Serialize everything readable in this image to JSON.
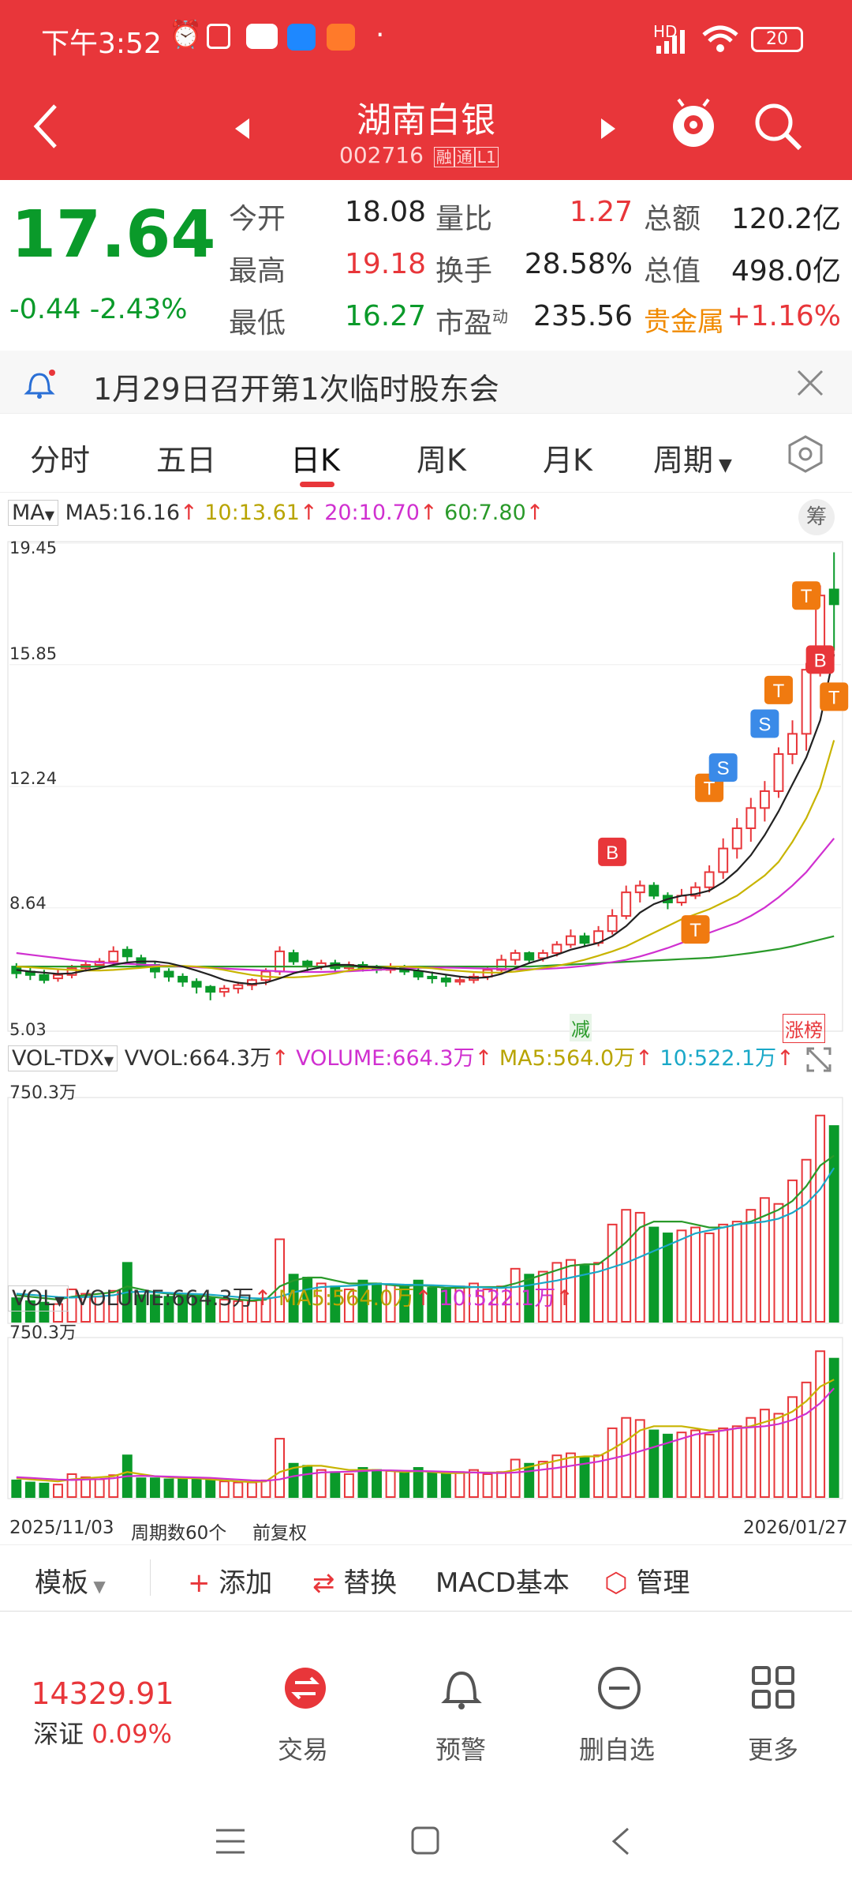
{
  "status_bar": {
    "time": "下午3:52",
    "network": "HD",
    "battery": "20"
  },
  "header": {
    "title": "湖南白银",
    "code": "002716",
    "tag1": "融",
    "tag2": "通",
    "tag3": "L1"
  },
  "quote": {
    "price": "17.64",
    "change": "-0.44",
    "change_pct": "-2.43%",
    "rows": [
      {
        "l1": "今开",
        "v1": "18.08",
        "l2": "量比",
        "v2": "1.27",
        "l3": "总额",
        "v3": "120.2亿"
      },
      {
        "l1": "最高",
        "v1": "19.18",
        "l2": "换手",
        "v2": "28.58%",
        "l3": "总值",
        "v3": "498.0亿"
      },
      {
        "l1": "最低",
        "v1": "16.27",
        "l2": "市盈",
        "l2sup": "动",
        "v2": "235.56",
        "l3": "贵金属",
        "v3": "+1.16%"
      }
    ]
  },
  "notice": {
    "text": "1月29日召开第1次临时股东会"
  },
  "tabs": [
    "分时",
    "五日",
    "日K",
    "周K",
    "月K",
    "周期"
  ],
  "active_tab": "日K",
  "ma_legend": {
    "label": "MA",
    "ma5": "MA5:16.16",
    "ma10": "10:13.61",
    "ma20": "20:10.70",
    "ma60": "60:7.80",
    "chip": "筹",
    "arrow": "↑"
  },
  "price_axis": [
    "19.45",
    "15.85",
    "12.24",
    "8.64",
    "5.03"
  ],
  "markers": {
    "jian": "减",
    "zhangbang": "涨榜",
    "B": "B",
    "S": "S",
    "T": "T"
  },
  "vol_tdx": {
    "label": "VOL-TDX",
    "vvol": "VVOL:664.3万",
    "volume": "VOLUME:664.3万",
    "ma5": "MA5:564.0万",
    "ma10": "10:522.1万",
    "max": "750.3万"
  },
  "vol": {
    "label": "VOL",
    "volume": "VOLUME:664.3万",
    "ma5": "MA5:564.0万",
    "ma10": "10:522.1万",
    "max": "750.3万"
  },
  "footer_axis": {
    "start": "2025/11/03",
    "count": "周期数60个",
    "adj": "前复权",
    "end": "2026/01/27"
  },
  "toolbar": {
    "template": "模板",
    "add": "添加",
    "replace": "替换",
    "macd": "MACD基本",
    "manage": "管理"
  },
  "bottom_nav": {
    "index_value": "14329.91",
    "index_name": "深证",
    "index_pct": "0.09%",
    "trade": "交易",
    "alert": "预警",
    "remove": "删自选",
    "more": "更多"
  },
  "colors": {
    "red": "#e8363a",
    "green": "#0a9a2a",
    "orange": "#f08a00",
    "ma5": "#222222",
    "ma10": "#c8b400",
    "ma20": "#d030d0",
    "ma60": "#2a9a2a"
  },
  "chart_data": {
    "type": "candlestick",
    "x_start": "2025/11/03",
    "x_end": "2026/01/27",
    "periods": 60,
    "ylim": [
      5.03,
      19.45
    ],
    "candles": [
      [
        6.9,
        6.7,
        7.0,
        6.55
      ],
      [
        6.75,
        6.65,
        6.9,
        6.5
      ],
      [
        6.65,
        6.5,
        6.8,
        6.4
      ],
      [
        6.55,
        6.65,
        6.8,
        6.45
      ],
      [
        6.65,
        6.85,
        6.95,
        6.55
      ],
      [
        6.85,
        6.95,
        7.05,
        6.75
      ],
      [
        6.95,
        7.05,
        7.15,
        6.85
      ],
      [
        7.05,
        7.35,
        7.5,
        6.95
      ],
      [
        7.4,
        7.2,
        7.5,
        7.05
      ],
      [
        7.15,
        6.95,
        7.25,
        6.85
      ],
      [
        6.95,
        6.75,
        7.05,
        6.55
      ],
      [
        6.75,
        6.6,
        6.85,
        6.45
      ],
      [
        6.6,
        6.45,
        6.7,
        6.3
      ],
      [
        6.45,
        6.3,
        6.55,
        6.1
      ],
      [
        6.3,
        6.15,
        6.35,
        5.9
      ],
      [
        6.15,
        6.25,
        6.35,
        6.0
      ],
      [
        6.25,
        6.35,
        6.45,
        6.1
      ],
      [
        6.35,
        6.5,
        6.55,
        6.2
      ],
      [
        6.5,
        6.75,
        6.85,
        6.35
      ],
      [
        6.75,
        7.35,
        7.5,
        6.65
      ],
      [
        7.3,
        7.05,
        7.4,
        6.95
      ],
      [
        7.05,
        6.9,
        7.1,
        6.75
      ],
      [
        6.9,
        7.0,
        7.1,
        6.8
      ],
      [
        7.0,
        6.85,
        7.1,
        6.75
      ],
      [
        6.85,
        6.95,
        7.05,
        6.75
      ],
      [
        6.95,
        6.85,
        7.05,
        6.75
      ],
      [
        6.85,
        6.8,
        6.95,
        6.7
      ],
      [
        6.8,
        6.9,
        7.0,
        6.7
      ],
      [
        6.9,
        6.75,
        6.95,
        6.65
      ],
      [
        6.75,
        6.6,
        6.85,
        6.5
      ],
      [
        6.6,
        6.55,
        6.75,
        6.4
      ],
      [
        6.55,
        6.45,
        6.65,
        6.3
      ],
      [
        6.45,
        6.5,
        6.6,
        6.35
      ],
      [
        6.5,
        6.6,
        6.7,
        6.4
      ],
      [
        6.6,
        6.8,
        6.9,
        6.5
      ],
      [
        6.8,
        7.1,
        7.25,
        6.7
      ],
      [
        7.1,
        7.3,
        7.4,
        6.95
      ],
      [
        7.3,
        7.1,
        7.35,
        7.0
      ],
      [
        7.15,
        7.3,
        7.4,
        7.05
      ],
      [
        7.3,
        7.55,
        7.65,
        7.2
      ],
      [
        7.55,
        7.8,
        8.0,
        7.45
      ],
      [
        7.8,
        7.6,
        7.9,
        7.5
      ],
      [
        7.6,
        7.95,
        8.1,
        7.5
      ],
      [
        7.95,
        8.4,
        8.6,
        7.85
      ],
      [
        8.4,
        9.1,
        9.3,
        8.3
      ],
      [
        9.1,
        9.3,
        9.45,
        8.8
      ],
      [
        9.3,
        9.0,
        9.4,
        8.9
      ],
      [
        9.0,
        8.8,
        9.1,
        8.6
      ],
      [
        8.8,
        9.0,
        9.2,
        8.7
      ],
      [
        9.0,
        9.25,
        9.4,
        8.9
      ],
      [
        9.25,
        9.7,
        9.9,
        9.1
      ],
      [
        9.7,
        10.4,
        10.7,
        9.5
      ],
      [
        10.4,
        11.0,
        11.3,
        10.1
      ],
      [
        11.0,
        11.6,
        11.9,
        10.6
      ],
      [
        11.6,
        12.1,
        12.4,
        11.2
      ],
      [
        12.1,
        13.2,
        13.4,
        11.9
      ],
      [
        13.2,
        13.8,
        14.2,
        12.9
      ],
      [
        13.8,
        15.7,
        15.9,
        13.3
      ],
      [
        15.7,
        17.9,
        18.2,
        15.5
      ],
      [
        18.08,
        17.64,
        19.18,
        16.27
      ]
    ],
    "ma5": [
      6.8,
      6.75,
      6.72,
      6.68,
      6.7,
      6.78,
      6.85,
      6.95,
      7.02,
      7.05,
      7.05,
      7.0,
      6.9,
      6.78,
      6.65,
      6.5,
      6.42,
      6.38,
      6.42,
      6.55,
      6.7,
      6.8,
      6.88,
      6.95,
      6.95,
      6.9,
      6.88,
      6.85,
      6.82,
      6.78,
      6.72,
      6.66,
      6.6,
      6.56,
      6.58,
      6.68,
      6.85,
      7.0,
      7.12,
      7.25,
      7.4,
      7.5,
      7.6,
      7.8,
      8.1,
      8.5,
      8.75,
      8.9,
      9.0,
      9.05,
      9.15,
      9.4,
      9.75,
      10.2,
      10.8,
      11.5,
      12.3,
      13.1,
      14.2,
      16.16
    ],
    "ma10": [
      6.9,
      6.88,
      6.85,
      6.82,
      6.8,
      6.78,
      6.78,
      6.8,
      6.83,
      6.86,
      6.9,
      6.92,
      6.92,
      6.9,
      6.86,
      6.8,
      6.72,
      6.65,
      6.6,
      6.58,
      6.58,
      6.6,
      6.64,
      6.7,
      6.78,
      6.84,
      6.87,
      6.9,
      6.9,
      6.88,
      6.85,
      6.8,
      6.77,
      6.74,
      6.72,
      6.72,
      6.75,
      6.8,
      6.86,
      6.92,
      7.0,
      7.1,
      7.22,
      7.35,
      7.5,
      7.7,
      7.9,
      8.1,
      8.3,
      8.45,
      8.6,
      8.8,
      9.0,
      9.3,
      9.6,
      10.0,
      10.6,
      11.3,
      12.2,
      13.61
    ],
    "ma20": [
      7.3,
      7.25,
      7.2,
      7.15,
      7.1,
      7.06,
      7.02,
      7.0,
      6.98,
      6.96,
      6.94,
      6.92,
      6.9,
      6.88,
      6.86,
      6.84,
      6.82,
      6.8,
      6.78,
      6.76,
      6.74,
      6.74,
      6.74,
      6.75,
      6.76,
      6.78,
      6.8,
      6.82,
      6.84,
      6.86,
      6.87,
      6.87,
      6.86,
      6.85,
      6.84,
      6.83,
      6.82,
      6.82,
      6.83,
      6.85,
      6.88,
      6.92,
      6.97,
      7.03,
      7.1,
      7.2,
      7.32,
      7.45,
      7.6,
      7.75,
      7.9,
      8.05,
      8.2,
      8.4,
      8.65,
      8.95,
      9.3,
      9.7,
      10.2,
      10.7
    ],
    "ma60": [
      6.9,
      6.9,
      6.9,
      6.9,
      6.9,
      6.9,
      6.9,
      6.9,
      6.9,
      6.9,
      6.9,
      6.9,
      6.9,
      6.9,
      6.9,
      6.9,
      6.9,
      6.9,
      6.9,
      6.9,
      6.9,
      6.9,
      6.9,
      6.9,
      6.9,
      6.9,
      6.9,
      6.9,
      6.9,
      6.9,
      6.9,
      6.9,
      6.9,
      6.9,
      6.9,
      6.9,
      6.9,
      6.9,
      6.92,
      6.94,
      6.96,
      6.98,
      7.0,
      7.02,
      7.04,
      7.06,
      7.08,
      7.1,
      7.12,
      7.14,
      7.16,
      7.2,
      7.25,
      7.3,
      7.36,
      7.42,
      7.5,
      7.6,
      7.7,
      7.8
    ],
    "volume": [
      80,
      70,
      65,
      60,
      110,
      95,
      85,
      105,
      200,
      90,
      90,
      85,
      85,
      90,
      80,
      75,
      70,
      70,
      80,
      280,
      160,
      150,
      130,
      120,
      110,
      140,
      130,
      125,
      120,
      140,
      115,
      110,
      120,
      130,
      110,
      120,
      180,
      160,
      170,
      200,
      210,
      190,
      200,
      330,
      380,
      370,
      320,
      300,
      310,
      320,
      300,
      330,
      340,
      380,
      420,
      400,
      480,
      550,
      700,
      664.3
    ],
    "vol_ma5": [
      90,
      85,
      80,
      75,
      85,
      90,
      95,
      100,
      120,
      110,
      100,
      95,
      90,
      90,
      85,
      80,
      75,
      72,
      75,
      120,
      140,
      150,
      150,
      140,
      130,
      130,
      130,
      125,
      120,
      125,
      120,
      115,
      115,
      118,
      118,
      118,
      130,
      145,
      160,
      175,
      190,
      195,
      195,
      230,
      270,
      320,
      340,
      340,
      340,
      330,
      320,
      320,
      330,
      340,
      360,
      380,
      410,
      460,
      530,
      564.0
    ],
    "vol_ma10": [
      95,
      92,
      88,
      84,
      82,
      84,
      86,
      90,
      100,
      102,
      100,
      98,
      96,
      94,
      92,
      88,
      84,
      80,
      78,
      85,
      100,
      110,
      118,
      120,
      122,
      125,
      128,
      128,
      126,
      125,
      124,
      122,
      120,
      118,
      116,
      115,
      118,
      124,
      132,
      140,
      150,
      160,
      170,
      185,
      200,
      220,
      240,
      260,
      280,
      300,
      310,
      320,
      330,
      335,
      340,
      350,
      370,
      400,
      450,
      522.1
    ],
    "vol_ylim": [
      0,
      750.3
    ]
  }
}
